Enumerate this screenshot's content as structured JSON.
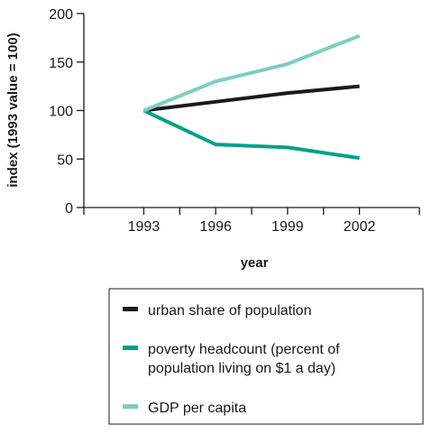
{
  "chart_data": {
    "type": "line",
    "x": [
      1993,
      1996,
      1999,
      2002
    ],
    "x_tick_labels": [
      "1993",
      "1996",
      "1999",
      "2002"
    ],
    "y_ticks": [
      0,
      50,
      100,
      150,
      200
    ],
    "y_tick_labels": [
      "0",
      "50",
      "100",
      "150",
      "200"
    ],
    "xlim": [
      1990.5,
      2004.5
    ],
    "ylim": [
      0,
      200
    ],
    "xlabel": "year",
    "ylabel": "index (1993 value = 100)",
    "grid": false,
    "legend_position": "bottom",
    "series": [
      {
        "name": "urban share of population",
        "label_lines": [
          "urban share of population"
        ],
        "color": "#1a1a1a",
        "values": [
          100,
          109,
          118,
          125
        ]
      },
      {
        "name": "poverty headcount (percent of population living on $1 a day)",
        "label_lines": [
          "poverty headcount (percent of",
          "population living on $1 a day)"
        ],
        "color": "#00a08a",
        "values": [
          100,
          65,
          62,
          51
        ]
      },
      {
        "name": "GDP per capita",
        "label_lines": [
          "GDP per capita"
        ],
        "color": "#7ecdc1",
        "values": [
          100,
          130,
          148,
          177
        ]
      }
    ]
  }
}
